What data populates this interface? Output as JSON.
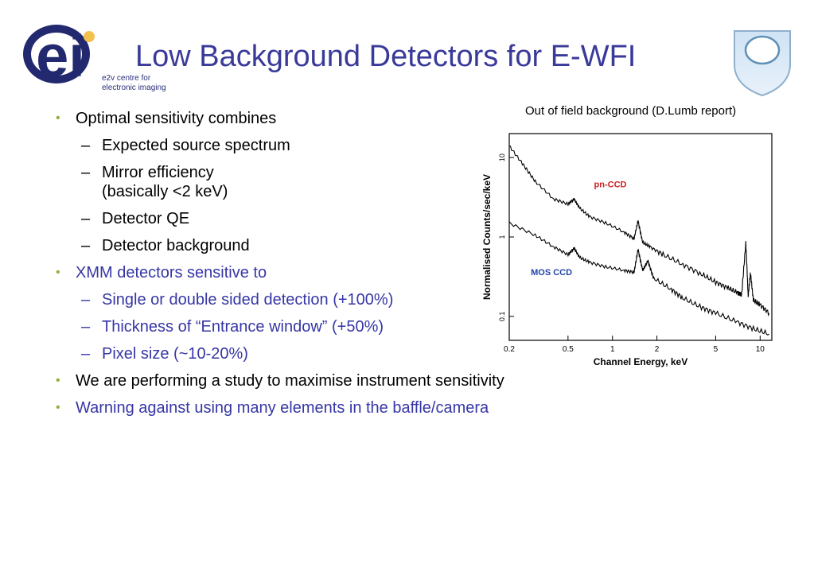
{
  "header": {
    "title": "Low Background Detectors for E-WFI",
    "logo_letters": "ei",
    "logo_sub_line1": "e2v centre for",
    "logo_sub_line2": "electronic imaging"
  },
  "figure": {
    "caption": "Out of field background (D.Lumb report)"
  },
  "bullets": [
    {
      "text": "Optimal sensitivity combines",
      "color": "#000000",
      "subs": [
        {
          "text": "Expected source spectrum"
        },
        {
          "text": "Mirror efficiency",
          "text2": "(basically <2 keV)"
        },
        {
          "text": "Detector QE"
        },
        {
          "text": "Detector background"
        }
      ]
    },
    {
      "text": "XMM detectors sensitive to",
      "color": "#3636a6",
      "subs": [
        {
          "text": "Single or double sided detection (+100%)"
        },
        {
          "text": "Thickness of “Entrance window” (+50%)"
        },
        {
          "text": "Pixel size (~10-20%)"
        }
      ]
    },
    {
      "text": "We are performing a study to maximise instrument sensitivity",
      "color": "#000000"
    },
    {
      "text": "Warning against using many elements in the baffle/camera",
      "color": "#3636a6"
    }
  ],
  "chart_data": {
    "type": "line",
    "xlabel": "Channel Energy, keV",
    "ylabel": "Normalised Counts/sec/keV",
    "xscale": "log",
    "yscale": "log",
    "xlim": [
      0.2,
      12
    ],
    "ylim": [
      0.05,
      20
    ],
    "x_ticks": [
      "0.2",
      "0.5",
      "1",
      "2",
      "5",
      "10"
    ],
    "y_ticks": [
      "10",
      "1",
      "0.1"
    ],
    "series": [
      {
        "name": "pn-CCD",
        "color": "#000000",
        "label_color": "#cc2222",
        "x": [
          0.2,
          0.25,
          0.3,
          0.4,
          0.5,
          0.55,
          0.6,
          0.7,
          0.9,
          1.2,
          1.4,
          1.49,
          1.6,
          1.8,
          2.2,
          3,
          4,
          5,
          6,
          7,
          7.5,
          8.0,
          8.3,
          8.6,
          9,
          10,
          11.5
        ],
        "y": [
          14,
          8,
          5,
          3.0,
          2.6,
          3.0,
          2.3,
          1.8,
          1.5,
          1.15,
          0.95,
          1.6,
          0.85,
          0.75,
          0.6,
          0.45,
          0.34,
          0.27,
          0.23,
          0.2,
          0.19,
          0.85,
          0.18,
          0.35,
          0.16,
          0.14,
          0.11
        ]
      },
      {
        "name": "MOS CCD",
        "color": "#000000",
        "label_color": "#2244aa",
        "x": [
          0.2,
          0.3,
          0.4,
          0.5,
          0.55,
          0.6,
          0.7,
          0.9,
          1.2,
          1.4,
          1.49,
          1.6,
          1.74,
          1.9,
          2.5,
          3,
          4,
          5,
          7,
          9,
          11.5
        ],
        "y": [
          1.5,
          1.05,
          0.75,
          0.6,
          0.72,
          0.55,
          0.48,
          0.42,
          0.38,
          0.36,
          0.7,
          0.38,
          0.5,
          0.3,
          0.22,
          0.17,
          0.13,
          0.11,
          0.085,
          0.07,
          0.06
        ]
      }
    ]
  }
}
